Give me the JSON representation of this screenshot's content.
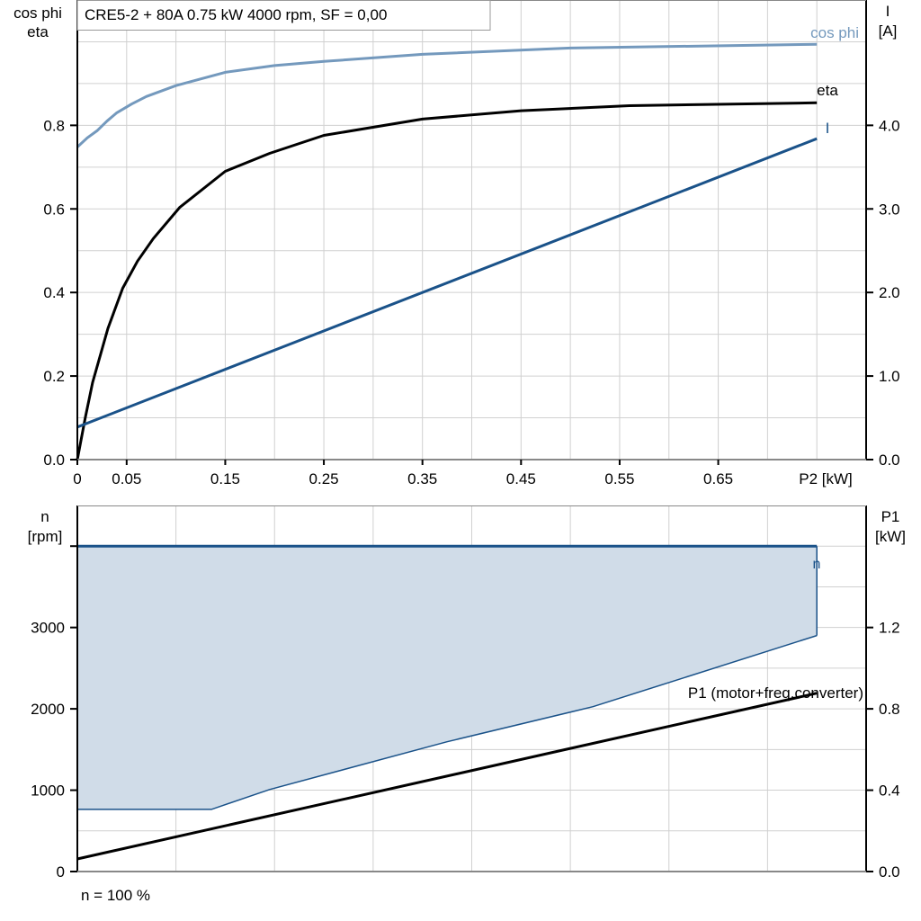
{
  "chart_data": [
    {
      "type": "line",
      "title": "CRE5-2 + 80A   0.75 kW   4000 rpm, SF = 0,00",
      "xlabel": "P2 [kW]",
      "ylabel_left": [
        "cos phi",
        "eta"
      ],
      "ylabel_right": [
        "I",
        "[A]"
      ],
      "xlim": [
        0,
        0.8
      ],
      "ylim_left": [
        0,
        1.1
      ],
      "ylim_right": [
        0,
        5.5
      ],
      "grid": true,
      "x_tick_labels": [
        "0",
        "0.05",
        "0.15",
        "0.25",
        "0.35",
        "0.45",
        "0.55",
        "0.65"
      ],
      "x_tick_values": [
        0,
        0.05,
        0.15,
        0.25,
        0.35,
        0.45,
        0.55,
        0.65
      ],
      "y_left_ticks": [
        "0.0",
        "0.2",
        "0.4",
        "0.6",
        "0.8"
      ],
      "y_right_ticks": [
        "0.0",
        "1.0",
        "2.0",
        "3.0",
        "4.0"
      ],
      "series": [
        {
          "name": "cos phi",
          "axis": "left",
          "color": "#7499bd",
          "x": [
            0,
            0.01,
            0.02,
            0.03,
            0.04,
            0.055,
            0.07,
            0.1,
            0.15,
            0.2,
            0.25,
            0.35,
            0.5,
            0.75
          ],
          "y": [
            0.748,
            0.77,
            0.787,
            0.81,
            0.83,
            0.851,
            0.869,
            0.895,
            0.927,
            0.943,
            0.953,
            0.97,
            0.985,
            0.994
          ]
        },
        {
          "name": "eta",
          "axis": "left",
          "color": "#000000",
          "x": [
            0,
            0.008,
            0.0155,
            0.031,
            0.046,
            0.061,
            0.077,
            0.104,
            0.15,
            0.195,
            0.25,
            0.35,
            0.45,
            0.56,
            0.75
          ],
          "y": [
            0,
            0.1,
            0.185,
            0.314,
            0.41,
            0.475,
            0.529,
            0.604,
            0.69,
            0.733,
            0.776,
            0.815,
            0.835,
            0.847,
            0.854
          ]
        },
        {
          "name": "I",
          "axis": "right",
          "color": "#1a5289",
          "x": [
            0,
            0.75
          ],
          "y": [
            0.39,
            3.84
          ]
        }
      ]
    },
    {
      "type": "area",
      "xlabel": "",
      "ylabel_left": [
        "n",
        "[rpm]"
      ],
      "ylabel_right": [
        "P1",
        "[kW]"
      ],
      "xlim": [
        0,
        0.8
      ],
      "ylim_left": [
        0,
        4500
      ],
      "ylim_right": [
        0,
        1.8
      ],
      "grid": true,
      "y_left_ticks": [
        "0",
        "1000",
        "2000",
        "3000"
      ],
      "y_right_ticks": [
        "0.0",
        "0.4",
        "0.8",
        "1.2"
      ],
      "footnote": "n = 100 %",
      "series": [
        {
          "name": "n",
          "axis": "left",
          "color": "#1a5289",
          "fill": "#d0dce8",
          "upper": {
            "x": [
              0,
              0.75
            ],
            "y": [
              4000,
              4000
            ]
          },
          "lower": {
            "x": [
              0,
              0.136,
              0.195,
              0.375,
              0.523,
              0.75
            ],
            "y": [
              764,
              764,
              1008,
              1595,
              2027,
              2901
            ]
          }
        },
        {
          "name": "P1 (motor+freq.converter)",
          "axis": "right",
          "color": "#000000",
          "x": [
            0,
            0.75
          ],
          "y": [
            0.062,
            0.877
          ]
        }
      ]
    }
  ]
}
